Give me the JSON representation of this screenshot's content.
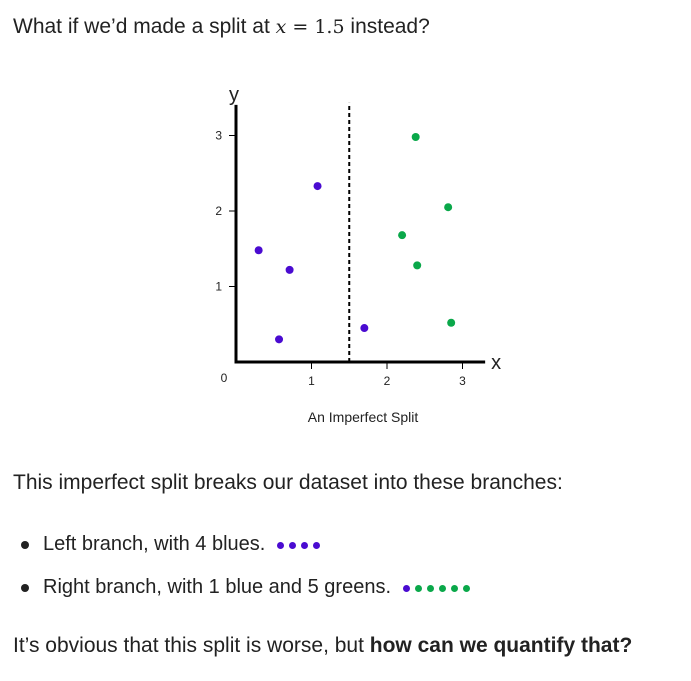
{
  "question": {
    "prefix": "What if we’d made a split at ",
    "var": "x",
    "eq": " = 1.5",
    "suffix": " instead?"
  },
  "colors": {
    "blue": "#4a0bd1",
    "green": "#0aa84a"
  },
  "chart_data": {
    "type": "scatter",
    "title": "",
    "xlabel": "x",
    "ylabel": "y",
    "xlim": [
      0,
      3.3
    ],
    "ylim": [
      0,
      3.3
    ],
    "xticks": [
      1,
      2,
      3
    ],
    "yticks": [
      1,
      2,
      3
    ],
    "origin_label": "0",
    "split_x": 1.5,
    "series": [
      {
        "color": "blue",
        "points": [
          [
            0.3,
            1.48
          ],
          [
            0.57,
            0.3
          ],
          [
            0.71,
            1.22
          ],
          [
            1.08,
            2.33
          ],
          [
            1.7,
            0.45
          ]
        ]
      },
      {
        "color": "green",
        "points": [
          [
            2.2,
            1.68
          ],
          [
            2.4,
            1.28
          ],
          [
            2.38,
            2.98
          ],
          [
            2.81,
            2.05
          ],
          [
            2.85,
            0.52
          ]
        ]
      }
    ],
    "caption": "An Imperfect Split"
  },
  "body": {
    "intro": "This imperfect split breaks our dataset into these branches:",
    "items": [
      {
        "text": "Left branch, with 4 blues.",
        "dots": [
          "blue",
          "blue",
          "blue",
          "blue"
        ]
      },
      {
        "text": "Right branch, with 1 blue and 5 greens.",
        "dots": [
          "blue",
          "green",
          "green",
          "green",
          "green",
          "green"
        ]
      }
    ],
    "conclusion_plain": "It’s obvious that this split is worse, but ",
    "conclusion_bold": "how can we quantify that?"
  }
}
